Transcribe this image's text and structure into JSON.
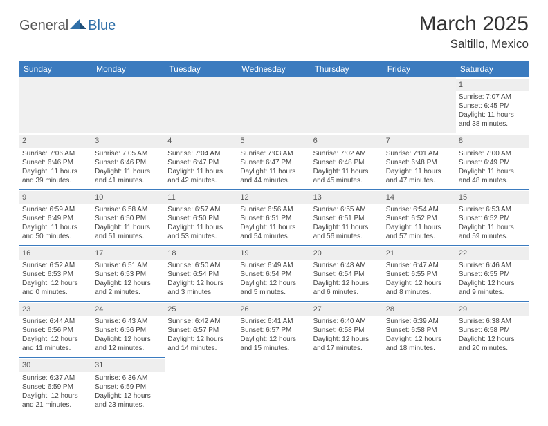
{
  "logo": {
    "part1": "General",
    "part2": "Blue"
  },
  "title": "March 2025",
  "subtitle": "Saltillo, Mexico",
  "colors": {
    "headerBg": "#3b7bbf",
    "headerText": "#ffffff",
    "dayNumBg": "#eeeeee",
    "borderColor": "#3b7bbf",
    "logoBlue": "#2f6fa8"
  },
  "weekdays": [
    "Sunday",
    "Monday",
    "Tuesday",
    "Wednesday",
    "Thursday",
    "Friday",
    "Saturday"
  ],
  "weeks": [
    [
      null,
      null,
      null,
      null,
      null,
      null,
      {
        "n": "1",
        "sr": "Sunrise: 7:07 AM",
        "ss": "Sunset: 6:45 PM",
        "d1": "Daylight: 11 hours",
        "d2": "and 38 minutes."
      }
    ],
    [
      {
        "n": "2",
        "sr": "Sunrise: 7:06 AM",
        "ss": "Sunset: 6:46 PM",
        "d1": "Daylight: 11 hours",
        "d2": "and 39 minutes."
      },
      {
        "n": "3",
        "sr": "Sunrise: 7:05 AM",
        "ss": "Sunset: 6:46 PM",
        "d1": "Daylight: 11 hours",
        "d2": "and 41 minutes."
      },
      {
        "n": "4",
        "sr": "Sunrise: 7:04 AM",
        "ss": "Sunset: 6:47 PM",
        "d1": "Daylight: 11 hours",
        "d2": "and 42 minutes."
      },
      {
        "n": "5",
        "sr": "Sunrise: 7:03 AM",
        "ss": "Sunset: 6:47 PM",
        "d1": "Daylight: 11 hours",
        "d2": "and 44 minutes."
      },
      {
        "n": "6",
        "sr": "Sunrise: 7:02 AM",
        "ss": "Sunset: 6:48 PM",
        "d1": "Daylight: 11 hours",
        "d2": "and 45 minutes."
      },
      {
        "n": "7",
        "sr": "Sunrise: 7:01 AM",
        "ss": "Sunset: 6:48 PM",
        "d1": "Daylight: 11 hours",
        "d2": "and 47 minutes."
      },
      {
        "n": "8",
        "sr": "Sunrise: 7:00 AM",
        "ss": "Sunset: 6:49 PM",
        "d1": "Daylight: 11 hours",
        "d2": "and 48 minutes."
      }
    ],
    [
      {
        "n": "9",
        "sr": "Sunrise: 6:59 AM",
        "ss": "Sunset: 6:49 PM",
        "d1": "Daylight: 11 hours",
        "d2": "and 50 minutes."
      },
      {
        "n": "10",
        "sr": "Sunrise: 6:58 AM",
        "ss": "Sunset: 6:50 PM",
        "d1": "Daylight: 11 hours",
        "d2": "and 51 minutes."
      },
      {
        "n": "11",
        "sr": "Sunrise: 6:57 AM",
        "ss": "Sunset: 6:50 PM",
        "d1": "Daylight: 11 hours",
        "d2": "and 53 minutes."
      },
      {
        "n": "12",
        "sr": "Sunrise: 6:56 AM",
        "ss": "Sunset: 6:51 PM",
        "d1": "Daylight: 11 hours",
        "d2": "and 54 minutes."
      },
      {
        "n": "13",
        "sr": "Sunrise: 6:55 AM",
        "ss": "Sunset: 6:51 PM",
        "d1": "Daylight: 11 hours",
        "d2": "and 56 minutes."
      },
      {
        "n": "14",
        "sr": "Sunrise: 6:54 AM",
        "ss": "Sunset: 6:52 PM",
        "d1": "Daylight: 11 hours",
        "d2": "and 57 minutes."
      },
      {
        "n": "15",
        "sr": "Sunrise: 6:53 AM",
        "ss": "Sunset: 6:52 PM",
        "d1": "Daylight: 11 hours",
        "d2": "and 59 minutes."
      }
    ],
    [
      {
        "n": "16",
        "sr": "Sunrise: 6:52 AM",
        "ss": "Sunset: 6:53 PM",
        "d1": "Daylight: 12 hours",
        "d2": "and 0 minutes."
      },
      {
        "n": "17",
        "sr": "Sunrise: 6:51 AM",
        "ss": "Sunset: 6:53 PM",
        "d1": "Daylight: 12 hours",
        "d2": "and 2 minutes."
      },
      {
        "n": "18",
        "sr": "Sunrise: 6:50 AM",
        "ss": "Sunset: 6:54 PM",
        "d1": "Daylight: 12 hours",
        "d2": "and 3 minutes."
      },
      {
        "n": "19",
        "sr": "Sunrise: 6:49 AM",
        "ss": "Sunset: 6:54 PM",
        "d1": "Daylight: 12 hours",
        "d2": "and 5 minutes."
      },
      {
        "n": "20",
        "sr": "Sunrise: 6:48 AM",
        "ss": "Sunset: 6:54 PM",
        "d1": "Daylight: 12 hours",
        "d2": "and 6 minutes."
      },
      {
        "n": "21",
        "sr": "Sunrise: 6:47 AM",
        "ss": "Sunset: 6:55 PM",
        "d1": "Daylight: 12 hours",
        "d2": "and 8 minutes."
      },
      {
        "n": "22",
        "sr": "Sunrise: 6:46 AM",
        "ss": "Sunset: 6:55 PM",
        "d1": "Daylight: 12 hours",
        "d2": "and 9 minutes."
      }
    ],
    [
      {
        "n": "23",
        "sr": "Sunrise: 6:44 AM",
        "ss": "Sunset: 6:56 PM",
        "d1": "Daylight: 12 hours",
        "d2": "and 11 minutes."
      },
      {
        "n": "24",
        "sr": "Sunrise: 6:43 AM",
        "ss": "Sunset: 6:56 PM",
        "d1": "Daylight: 12 hours",
        "d2": "and 12 minutes."
      },
      {
        "n": "25",
        "sr": "Sunrise: 6:42 AM",
        "ss": "Sunset: 6:57 PM",
        "d1": "Daylight: 12 hours",
        "d2": "and 14 minutes."
      },
      {
        "n": "26",
        "sr": "Sunrise: 6:41 AM",
        "ss": "Sunset: 6:57 PM",
        "d1": "Daylight: 12 hours",
        "d2": "and 15 minutes."
      },
      {
        "n": "27",
        "sr": "Sunrise: 6:40 AM",
        "ss": "Sunset: 6:58 PM",
        "d1": "Daylight: 12 hours",
        "d2": "and 17 minutes."
      },
      {
        "n": "28",
        "sr": "Sunrise: 6:39 AM",
        "ss": "Sunset: 6:58 PM",
        "d1": "Daylight: 12 hours",
        "d2": "and 18 minutes."
      },
      {
        "n": "29",
        "sr": "Sunrise: 6:38 AM",
        "ss": "Sunset: 6:58 PM",
        "d1": "Daylight: 12 hours",
        "d2": "and 20 minutes."
      }
    ],
    [
      {
        "n": "30",
        "sr": "Sunrise: 6:37 AM",
        "ss": "Sunset: 6:59 PM",
        "d1": "Daylight: 12 hours",
        "d2": "and 21 minutes."
      },
      {
        "n": "31",
        "sr": "Sunrise: 6:36 AM",
        "ss": "Sunset: 6:59 PM",
        "d1": "Daylight: 12 hours",
        "d2": "and 23 minutes."
      },
      null,
      null,
      null,
      null,
      null
    ]
  ]
}
